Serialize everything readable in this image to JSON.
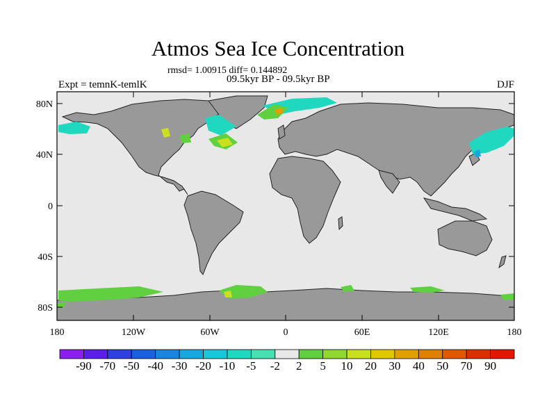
{
  "title": "Atmos Sea Ice Concentration",
  "stats_text": "rmsd= 1.00915 diff= 0.144892",
  "period_text": "09.5kyr BP - 09.5kyr BP",
  "expt_text": "Expt = temnK-temlK",
  "season": "DJF",
  "lat_labels": [
    "80N",
    "40N",
    "0",
    "40S",
    "80S"
  ],
  "lon_labels": [
    "180",
    "120W",
    "60W",
    "0",
    "60E",
    "120E",
    "180"
  ],
  "colorbar": {
    "labels": [
      "-90",
      "-70",
      "-50",
      "-40",
      "-30",
      "-20",
      "-10",
      "-5",
      "-2",
      "2",
      "5",
      "10",
      "20",
      "30",
      "40",
      "50",
      "70",
      "90"
    ],
    "colors": [
      "#8a1ff0",
      "#5a1fe8",
      "#2f40e0",
      "#1a60e0",
      "#1a85e0",
      "#18a8e0",
      "#18c8d8",
      "#20d8c0",
      "#48e0b0",
      "#e8e8e8",
      "#60d040",
      "#90d830",
      "#c8e020",
      "#e0c800",
      "#e0a000",
      "#e08000",
      "#e05800",
      "#d83000",
      "#e01800"
    ],
    "land_color": "#999999",
    "ocean_color": "#e8e8e8"
  }
}
